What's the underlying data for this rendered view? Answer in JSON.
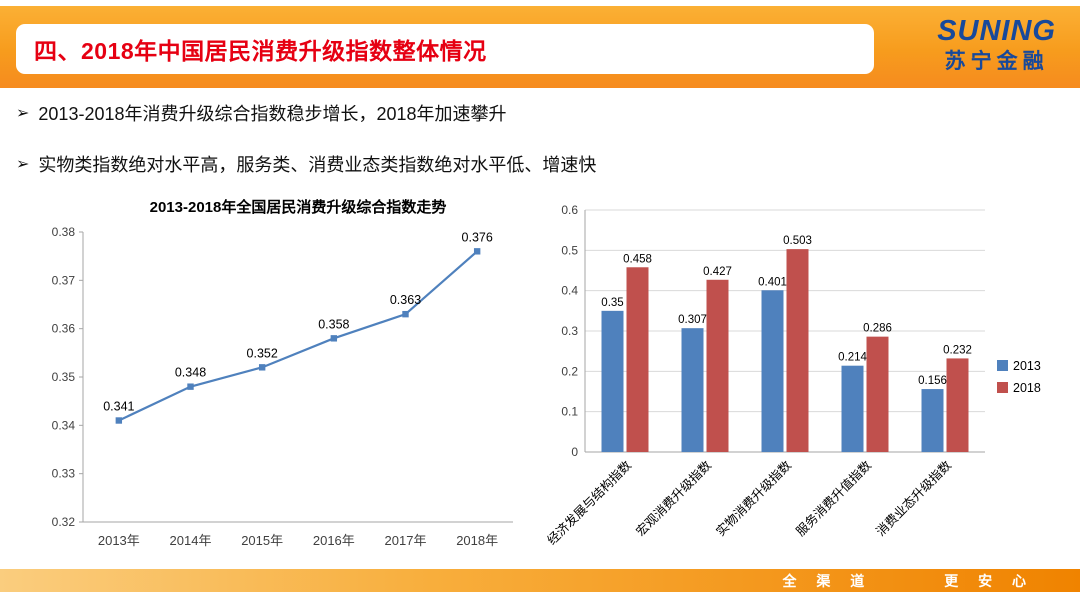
{
  "slide": {
    "title": "四、2018年中国居民消费升级指数整体情况",
    "bullets": [
      "2013-2018年消费升级综合指数稳步增长，2018年加速攀升",
      "实物类指数绝对水平高，服务类、消费业态类指数绝对水平低、增速快"
    ],
    "bullet_glyph": "➢",
    "logo": {
      "brand": "SUNING",
      "sub": "苏宁金融"
    },
    "footer": {
      "left": "全 渠 道",
      "right": "更 安 心"
    }
  },
  "colors": {
    "header_orange": "#F79C1D",
    "title_red": "#E60012",
    "logo_blue": "#17499B",
    "series_blue": "#4F81BD",
    "series_red": "#C0504D",
    "grid_gray": "#D9D9D9",
    "axis_gray": "#A6A6A6"
  },
  "chart_data": [
    {
      "type": "line",
      "title": "2013-2018年全国居民消费升级综合指数走势",
      "categories": [
        "2013年",
        "2014年",
        "2015年",
        "2016年",
        "2017年",
        "2018年"
      ],
      "values": [
        0.341,
        0.348,
        0.352,
        0.358,
        0.363,
        0.376
      ],
      "ylim": [
        0.32,
        0.38
      ],
      "ytick_step": 0.01,
      "grid": false,
      "legend_position": "none",
      "series_color": "#4F81BD"
    },
    {
      "type": "bar",
      "title": "",
      "categories": [
        "经济发展与结构指数",
        "宏观消费升级指数",
        "实物消费升级指数",
        "服务消费升值指数",
        "消费业态升级指数"
      ],
      "series": [
        {
          "name": "2013",
          "color": "#4F81BD",
          "values": [
            0.35,
            0.307,
            0.401,
            0.214,
            0.156
          ]
        },
        {
          "name": "2018",
          "color": "#C0504D",
          "values": [
            0.458,
            0.427,
            0.503,
            0.286,
            0.232
          ]
        }
      ],
      "ylim": [
        0,
        0.6
      ],
      "ytick_step": 0.1,
      "grid": true,
      "legend_position": "right"
    }
  ]
}
